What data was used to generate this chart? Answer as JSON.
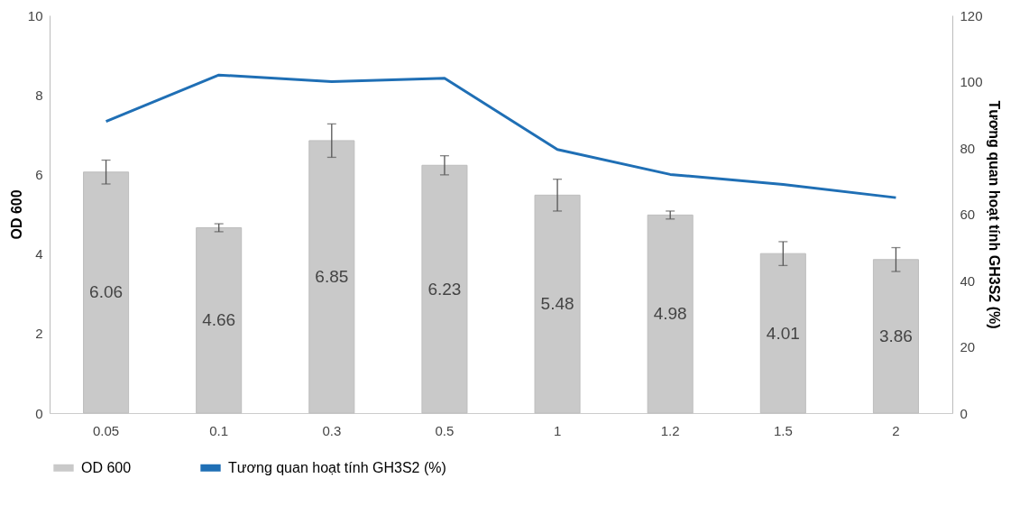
{
  "chart_data": {
    "type": "bar",
    "categories": [
      "0.05",
      "0.1",
      "0.3",
      "0.5",
      "1",
      "1.2",
      "1.5",
      "2"
    ],
    "ylabel": "OD 600",
    "y2label": "Tương quan hoạt tính GH3S2 (%)",
    "ylim": [
      0,
      10
    ],
    "yticks": [
      0,
      2,
      4,
      6,
      8,
      10
    ],
    "y2lim": [
      0,
      120
    ],
    "y2ticks": [
      0,
      20,
      40,
      60,
      80,
      100,
      120
    ],
    "series": [
      {
        "name": "OD 600",
        "color": "#c9c9c9",
        "values": [
          6.06,
          4.66,
          6.85,
          6.23,
          5.48,
          4.98,
          4.01,
          3.86
        ],
        "value_labels": [
          "6.06",
          "4.66",
          "6.85",
          "6.23",
          "5.48",
          "4.98",
          "4.01",
          "3.86"
        ],
        "errors": [
          0.3,
          0.1,
          0.42,
          0.24,
          0.4,
          0.1,
          0.3,
          0.3
        ]
      },
      {
        "name": "Tương quan hoạt tính GH3S2 (%)",
        "type": "line",
        "axis": "y2",
        "color": "#1f6fb5",
        "values": [
          88,
          102,
          100,
          101,
          79.5,
          72,
          69,
          65
        ]
      }
    ],
    "legend": "bottom",
    "grid": false,
    "marker": "none",
    "line_style": "solid"
  }
}
